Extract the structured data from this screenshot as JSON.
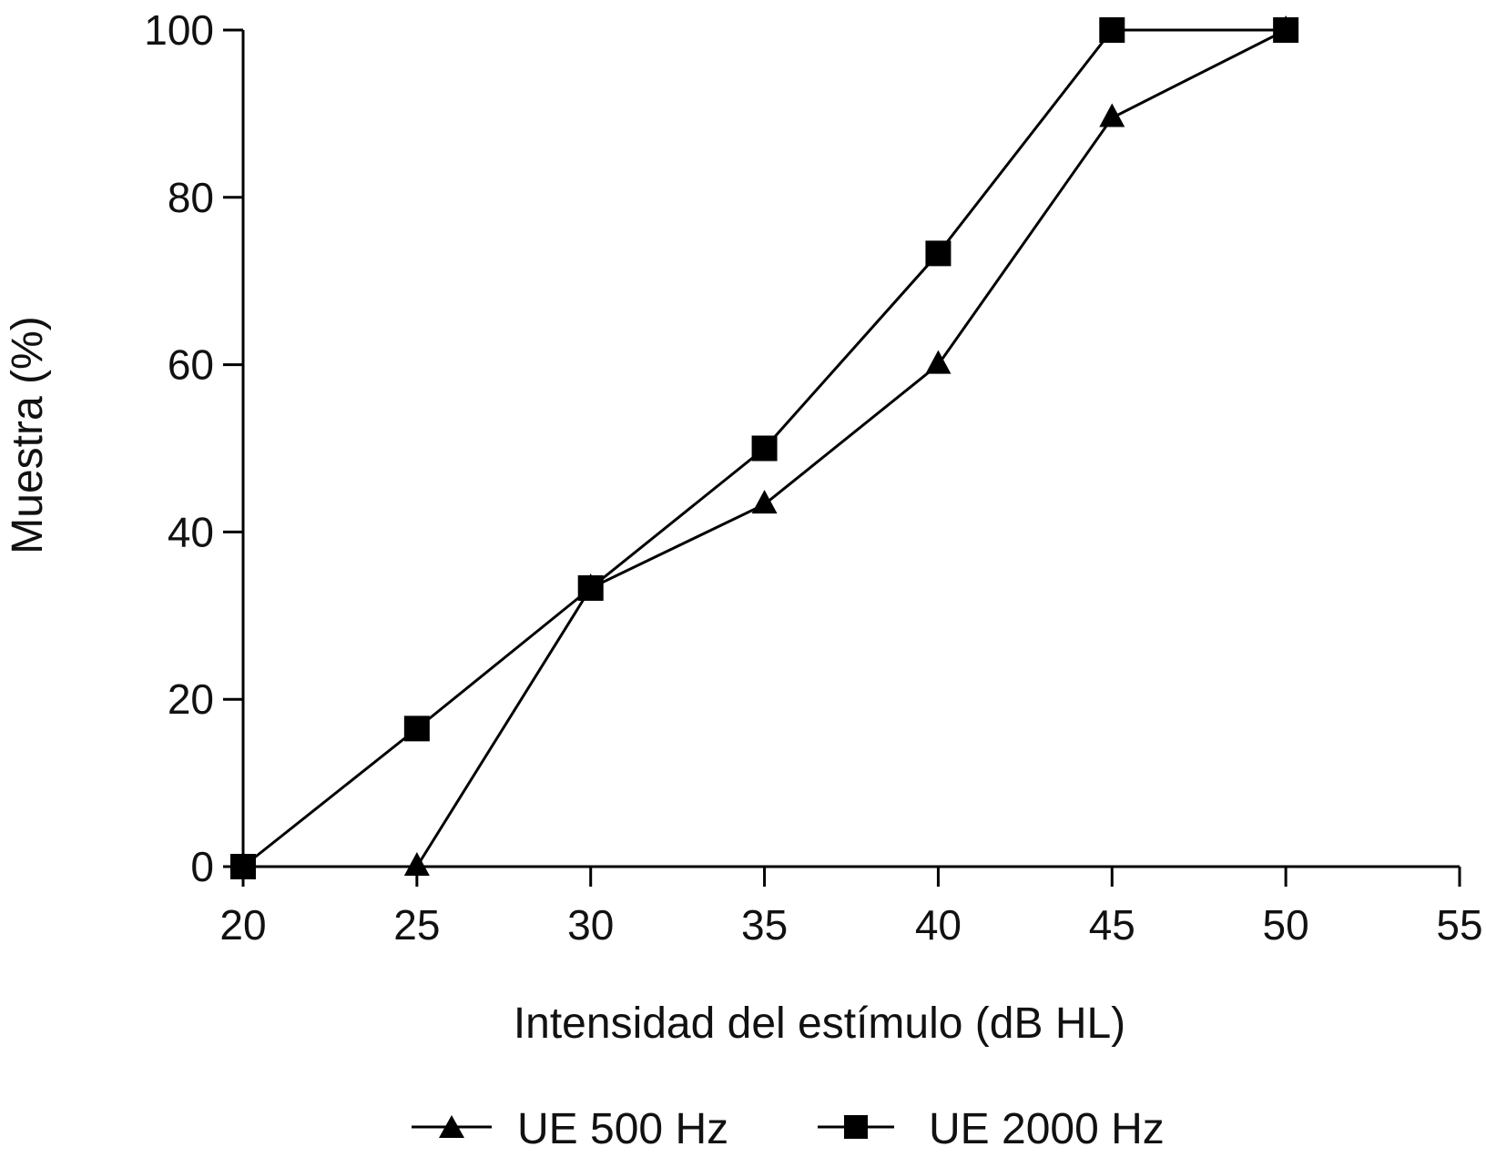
{
  "chart_data": {
    "type": "line",
    "title": "",
    "xlabel": "Intensidad del estímulo (dB HL)",
    "ylabel": "Muestra (%)",
    "xlim": [
      20,
      55
    ],
    "ylim": [
      0,
      100
    ],
    "xticks": [
      20,
      25,
      30,
      35,
      40,
      45,
      50,
      55
    ],
    "yticks": [
      0,
      20,
      40,
      60,
      80,
      100
    ],
    "grid": false,
    "legend_position": "bottom",
    "series": [
      {
        "name": "UE 500 Hz",
        "marker": "triangle",
        "color": "#000000",
        "x": [
          25,
          30,
          35,
          40,
          45,
          50
        ],
        "y": [
          0,
          33.3,
          43.3,
          60,
          89.5,
          100
        ]
      },
      {
        "name": "UE 2000 Hz",
        "marker": "square",
        "color": "#000000",
        "x": [
          20,
          25,
          30,
          35,
          40,
          45,
          50
        ],
        "y": [
          0,
          16.5,
          33.3,
          50,
          73.3,
          100,
          100
        ]
      }
    ]
  }
}
